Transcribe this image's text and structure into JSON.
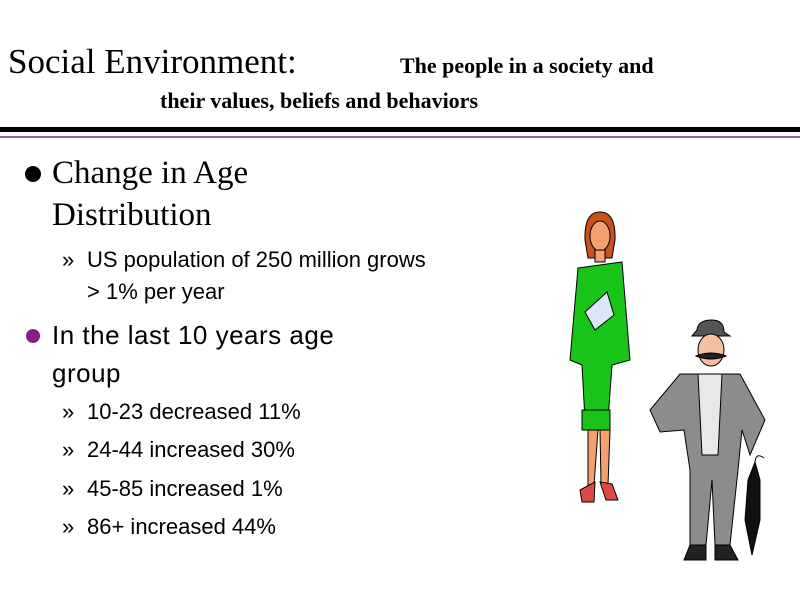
{
  "header": {
    "title": "Social Environment:",
    "subtitle_lines": [
      "The people in a society and",
      "their values, beliefs and behaviors"
    ]
  },
  "sub_bullet": "»",
  "bullets": [
    {
      "text": "Change in Age Distribution",
      "subitems": [
        "US population of 250 million grows > 1% per year"
      ]
    },
    {
      "text": "In the last 10 years age group",
      "subitems": [
        "10-23 decreased 11%",
        "24-44 increased 30%",
        "45-85 increased 1%",
        "86+ increased 44%"
      ]
    }
  ]
}
